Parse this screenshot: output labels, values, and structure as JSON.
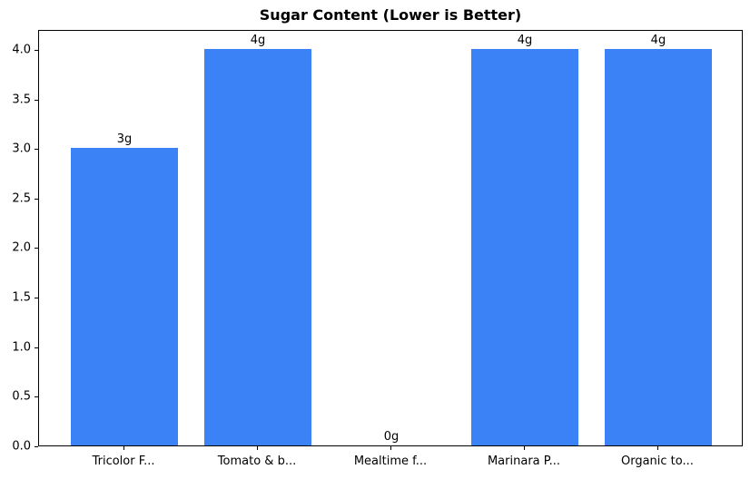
{
  "chart_data": {
    "type": "bar",
    "title": "Sugar Content (Lower is Better)",
    "categories": [
      "Tricolor F...",
      "Tomato & b...",
      "Mealtime f...",
      "Marinara P...",
      "Organic to..."
    ],
    "values": [
      3,
      4,
      0,
      4,
      4
    ],
    "bar_labels": [
      "3g",
      "4g",
      "0g",
      "4g",
      "4g"
    ],
    "xlabel": "",
    "ylabel": "",
    "ylim": [
      0,
      4.2
    ],
    "xlim": [
      -0.64,
      4.64
    ],
    "yticks": [
      0.0,
      0.5,
      1.0,
      1.5,
      2.0,
      2.5,
      3.0,
      3.5,
      4.0
    ],
    "ytick_labels": [
      "0.0",
      "0.5",
      "1.0",
      "1.5",
      "2.0",
      "2.5",
      "3.0",
      "3.5",
      "4.0"
    ],
    "bar_width_fraction": 0.8,
    "bar_color": "#3b82f6",
    "axis_color": "#000000",
    "text_color": "#000000",
    "background_color": "#ffffff",
    "grid": false,
    "legend_position": "none"
  }
}
